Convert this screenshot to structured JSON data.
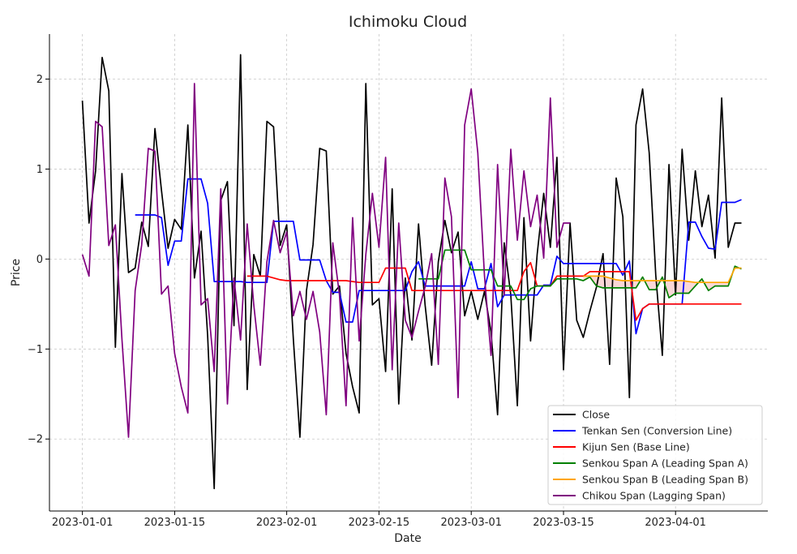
{
  "chart_data": {
    "type": "line",
    "title": "Ichimoku Cloud",
    "xlabel": "Date",
    "ylabel": "Price",
    "x_start": "2023-01-01",
    "x_tick_labels": [
      "2023-01-01",
      "2023-01-15",
      "2023-02-01",
      "2023-02-15",
      "2023-03-01",
      "2023-03-15",
      "2023-04-01"
    ],
    "x_tick_dates": [
      "2023-01-01",
      "2023-01-15",
      "2023-02-01",
      "2023-02-15",
      "2023-03-01",
      "2023-03-15",
      "2023-04-01"
    ],
    "xlim": [
      "2022-12-27",
      "2023-04-15"
    ],
    "y_tick_values": [
      -2,
      -1,
      0,
      1,
      2
    ],
    "y_tick_labels": [
      "−2",
      "−1",
      "0",
      "1",
      "2"
    ],
    "ylim": [
      -2.8,
      2.5
    ],
    "grid": true,
    "legend_position": "lower-right",
    "series": [
      {
        "name": "Close",
        "color": "#000000",
        "x": [
          "2023-01-01",
          "2023-01-02",
          "2023-01-03",
          "2023-01-04",
          "2023-01-05",
          "2023-01-06",
          "2023-01-07",
          "2023-01-08",
          "2023-01-09",
          "2023-01-10",
          "2023-01-11",
          "2023-01-12",
          "2023-01-13",
          "2023-01-14",
          "2023-01-15",
          "2023-01-16",
          "2023-01-17",
          "2023-01-18",
          "2023-01-19",
          "2023-01-20",
          "2023-01-21",
          "2023-01-22",
          "2023-01-23",
          "2023-01-24",
          "2023-01-25",
          "2023-01-26",
          "2023-01-27",
          "2023-01-28",
          "2023-01-29",
          "2023-01-30",
          "2023-01-31",
          "2023-02-01",
          "2023-02-02",
          "2023-02-03",
          "2023-02-04",
          "2023-02-05",
          "2023-02-06",
          "2023-02-07",
          "2023-02-08",
          "2023-02-09",
          "2023-02-10",
          "2023-02-11",
          "2023-02-12",
          "2023-02-13",
          "2023-02-14",
          "2023-02-15",
          "2023-02-16",
          "2023-02-17",
          "2023-02-18",
          "2023-02-19",
          "2023-02-20",
          "2023-02-21",
          "2023-02-22",
          "2023-02-23",
          "2023-02-24",
          "2023-02-25",
          "2023-02-26",
          "2023-02-27",
          "2023-02-28",
          "2023-03-01",
          "2023-03-02",
          "2023-03-03",
          "2023-03-04",
          "2023-03-05",
          "2023-03-06",
          "2023-03-07",
          "2023-03-08",
          "2023-03-09",
          "2023-03-10",
          "2023-03-11",
          "2023-03-12",
          "2023-03-13",
          "2023-03-14",
          "2023-03-15",
          "2023-03-16",
          "2023-03-17",
          "2023-03-18",
          "2023-03-19",
          "2023-03-20",
          "2023-03-21",
          "2023-03-22",
          "2023-03-23",
          "2023-03-24",
          "2023-03-25",
          "2023-03-26",
          "2023-03-27",
          "2023-03-28",
          "2023-03-29",
          "2023-03-30",
          "2023-03-31",
          "2023-04-01",
          "2023-04-02",
          "2023-04-03",
          "2023-04-04",
          "2023-04-05",
          "2023-04-06",
          "2023-04-07",
          "2023-04-08",
          "2023-04-09",
          "2023-04-10",
          "2023-04-11"
        ],
        "y": [
          1.76,
          0.4,
          0.98,
          2.24,
          1.87,
          -0.98,
          0.95,
          -0.15,
          -0.1,
          0.41,
          0.14,
          1.45,
          0.76,
          0.12,
          0.44,
          0.33,
          1.49,
          -0.21,
          0.31,
          -0.85,
          -2.55,
          0.65,
          0.86,
          -0.74,
          2.27,
          -1.45,
          0.05,
          -0.19,
          1.53,
          1.47,
          0.15,
          0.38,
          -0.89,
          -1.98,
          -0.35,
          0.16,
          1.23,
          1.2,
          -0.39,
          -0.3,
          -1.05,
          -1.42,
          -1.71,
          1.95,
          -0.51,
          -0.44,
          -1.25,
          0.78,
          -1.61,
          -0.21,
          -0.9,
          0.39,
          -0.51,
          -1.18,
          -0.03,
          0.43,
          0.07,
          0.3,
          -0.63,
          -0.36,
          -0.67,
          -0.36,
          -0.81,
          -1.73,
          0.18,
          -0.4,
          -1.63,
          0.46,
          -0.91,
          0.05,
          0.73,
          0.13,
          1.13,
          -1.23,
          0.4,
          -0.68,
          -0.87,
          -0.58,
          -0.31,
          0.06,
          -1.17,
          0.9,
          0.47,
          -1.54,
          1.49,
          1.89,
          1.18,
          -0.18,
          -1.07,
          1.05,
          -0.4,
          1.22,
          0.21,
          0.98,
          0.36,
          0.71,
          0.01,
          1.79,
          0.13,
          0.4,
          0.4
        ]
      },
      {
        "name": "Tenkan Sen (Conversion Line)",
        "color": "#0000ff",
        "x": [
          "2023-01-09",
          "2023-01-10",
          "2023-01-11",
          "2023-01-12",
          "2023-01-13",
          "2023-01-14",
          "2023-01-15",
          "2023-01-16",
          "2023-01-17",
          "2023-01-18",
          "2023-01-19",
          "2023-01-20",
          "2023-01-21",
          "2023-01-22",
          "2023-01-23",
          "2023-01-24",
          "2023-01-25",
          "2023-01-26",
          "2023-01-27",
          "2023-01-28",
          "2023-01-29",
          "2023-01-30",
          "2023-01-31",
          "2023-02-01",
          "2023-02-02",
          "2023-02-03",
          "2023-02-04",
          "2023-02-05",
          "2023-02-06",
          "2023-02-07",
          "2023-02-08",
          "2023-02-09",
          "2023-02-10",
          "2023-02-11",
          "2023-02-12",
          "2023-02-13",
          "2023-02-14",
          "2023-02-15",
          "2023-02-16",
          "2023-02-17",
          "2023-02-18",
          "2023-02-19",
          "2023-02-20",
          "2023-02-21",
          "2023-02-22",
          "2023-02-23",
          "2023-02-24",
          "2023-02-25",
          "2023-02-26",
          "2023-02-27",
          "2023-02-28",
          "2023-03-01",
          "2023-03-02",
          "2023-03-03",
          "2023-03-04",
          "2023-03-05",
          "2023-03-06",
          "2023-03-07",
          "2023-03-08",
          "2023-03-09",
          "2023-03-10",
          "2023-03-11",
          "2023-03-12",
          "2023-03-13",
          "2023-03-14",
          "2023-03-15",
          "2023-03-16",
          "2023-03-17",
          "2023-03-18",
          "2023-03-19",
          "2023-03-20",
          "2023-03-21",
          "2023-03-22",
          "2023-03-23",
          "2023-03-24",
          "2023-03-25",
          "2023-03-26",
          "2023-03-27",
          "2023-03-28",
          "2023-03-29",
          "2023-03-30",
          "2023-03-31",
          "2023-04-01",
          "2023-04-02",
          "2023-04-03",
          "2023-04-04",
          "2023-04-05",
          "2023-04-06",
          "2023-04-07",
          "2023-04-08",
          "2023-04-09",
          "2023-04-10",
          "2023-04-11"
        ],
        "y": [
          0.49,
          0.49,
          0.49,
          0.49,
          0.46,
          -0.07,
          0.2,
          0.2,
          0.89,
          0.89,
          0.89,
          0.62,
          -0.25,
          -0.25,
          -0.25,
          -0.25,
          -0.25,
          -0.26,
          -0.26,
          -0.26,
          -0.26,
          0.42,
          0.42,
          0.42,
          0.42,
          -0.01,
          -0.01,
          -0.01,
          -0.01,
          -0.24,
          -0.37,
          -0.37,
          -0.7,
          -0.7,
          -0.35,
          -0.35,
          -0.35,
          -0.35,
          -0.35,
          -0.35,
          -0.35,
          -0.35,
          -0.14,
          -0.03,
          -0.3,
          -0.3,
          -0.3,
          -0.3,
          -0.3,
          -0.3,
          -0.3,
          -0.03,
          -0.33,
          -0.33,
          -0.05,
          -0.53,
          -0.4,
          -0.4,
          -0.4,
          -0.4,
          -0.4,
          -0.4,
          -0.29,
          -0.29,
          0.03,
          -0.05,
          -0.05,
          -0.05,
          -0.05,
          -0.05,
          -0.05,
          -0.05,
          -0.05,
          -0.05,
          -0.18,
          -0.02,
          -0.83,
          -0.55,
          -0.5,
          -0.5,
          -0.5,
          -0.5,
          -0.5,
          -0.5,
          0.41,
          0.41,
          0.25,
          0.12,
          0.11,
          0.63,
          0.63,
          0.63,
          0.66
        ]
      },
      {
        "name": "Kijun Sen (Base Line)",
        "color": "#ff0000",
        "x": [
          "2023-01-26",
          "2023-01-27",
          "2023-01-28",
          "2023-01-29",
          "2023-01-30",
          "2023-01-31",
          "2023-02-01",
          "2023-02-02",
          "2023-02-03",
          "2023-02-04",
          "2023-02-05",
          "2023-02-06",
          "2023-02-07",
          "2023-02-08",
          "2023-02-09",
          "2023-02-10",
          "2023-02-11",
          "2023-02-12",
          "2023-02-13",
          "2023-02-14",
          "2023-02-15",
          "2023-02-16",
          "2023-02-17",
          "2023-02-18",
          "2023-02-19",
          "2023-02-20",
          "2023-02-21",
          "2023-02-22",
          "2023-02-23",
          "2023-02-24",
          "2023-02-25",
          "2023-02-26",
          "2023-02-27",
          "2023-02-28",
          "2023-03-01",
          "2023-03-02",
          "2023-03-03",
          "2023-03-04",
          "2023-03-05",
          "2023-03-06",
          "2023-03-07",
          "2023-03-08",
          "2023-03-09",
          "2023-03-10",
          "2023-03-11",
          "2023-03-12",
          "2023-03-13",
          "2023-03-14",
          "2023-03-15",
          "2023-03-16",
          "2023-03-17",
          "2023-03-18",
          "2023-03-19",
          "2023-03-20",
          "2023-03-21",
          "2023-03-22",
          "2023-03-23",
          "2023-03-24",
          "2023-03-25",
          "2023-03-26",
          "2023-03-27",
          "2023-03-28",
          "2023-03-29",
          "2023-03-30",
          "2023-03-31",
          "2023-04-01",
          "2023-04-02",
          "2023-04-03",
          "2023-04-04",
          "2023-04-05",
          "2023-04-06",
          "2023-04-07",
          "2023-04-08",
          "2023-04-09",
          "2023-04-10",
          "2023-04-11"
        ],
        "y": [
          -0.19,
          -0.19,
          -0.19,
          -0.19,
          -0.21,
          -0.23,
          -0.24,
          -0.24,
          -0.24,
          -0.24,
          -0.24,
          -0.24,
          -0.24,
          -0.24,
          -0.24,
          -0.24,
          -0.25,
          -0.26,
          -0.26,
          -0.26,
          -0.26,
          -0.1,
          -0.1,
          -0.1,
          -0.1,
          -0.35,
          -0.35,
          -0.35,
          -0.35,
          -0.35,
          -0.35,
          -0.35,
          -0.35,
          -0.35,
          -0.35,
          -0.35,
          -0.35,
          -0.35,
          -0.35,
          -0.35,
          -0.35,
          -0.35,
          -0.14,
          -0.04,
          -0.3,
          -0.3,
          -0.3,
          -0.19,
          -0.19,
          -0.19,
          -0.19,
          -0.19,
          -0.14,
          -0.14,
          -0.14,
          -0.14,
          -0.14,
          -0.14,
          -0.14,
          -0.68,
          -0.55,
          -0.5,
          -0.5,
          -0.5,
          -0.5,
          -0.5,
          -0.5,
          -0.5,
          -0.5,
          -0.5,
          -0.5,
          -0.5,
          -0.5,
          -0.5,
          -0.5,
          -0.5
        ]
      },
      {
        "name": "Senkou Span A (Leading Span A)",
        "color": "#008000",
        "x": [
          "2023-02-21",
          "2023-02-22",
          "2023-02-23",
          "2023-02-24",
          "2023-02-25",
          "2023-02-26",
          "2023-02-27",
          "2023-02-28",
          "2023-03-01",
          "2023-03-02",
          "2023-03-03",
          "2023-03-04",
          "2023-03-05",
          "2023-03-06",
          "2023-03-07",
          "2023-03-08",
          "2023-03-09",
          "2023-03-10",
          "2023-03-11",
          "2023-03-12",
          "2023-03-13",
          "2023-03-14",
          "2023-03-15",
          "2023-03-16",
          "2023-03-17",
          "2023-03-18",
          "2023-03-19",
          "2023-03-20",
          "2023-03-21",
          "2023-03-22",
          "2023-03-23",
          "2023-03-24",
          "2023-03-25",
          "2023-03-26",
          "2023-03-27",
          "2023-03-28",
          "2023-03-29",
          "2023-03-30",
          "2023-03-31",
          "2023-04-01",
          "2023-04-02",
          "2023-04-03",
          "2023-04-04",
          "2023-04-05",
          "2023-04-06",
          "2023-04-07",
          "2023-04-08",
          "2023-04-09",
          "2023-04-10",
          "2023-04-11"
        ],
        "y": [
          -0.22,
          -0.22,
          -0.22,
          -0.22,
          0.1,
          0.1,
          0.1,
          0.1,
          -0.12,
          -0.12,
          -0.12,
          -0.12,
          -0.3,
          -0.3,
          -0.3,
          -0.45,
          -0.45,
          -0.33,
          -0.3,
          -0.3,
          -0.3,
          -0.22,
          -0.22,
          -0.22,
          -0.22,
          -0.24,
          -0.2,
          -0.3,
          -0.32,
          -0.32,
          -0.32,
          -0.32,
          -0.32,
          -0.32,
          -0.2,
          -0.34,
          -0.34,
          -0.2,
          -0.43,
          -0.38,
          -0.38,
          -0.38,
          -0.3,
          -0.22,
          -0.35,
          -0.3,
          -0.3,
          -0.3,
          -0.08,
          -0.11
        ]
      },
      {
        "name": "Senkou Span B (Leading Span B)",
        "color": "#ffa500",
        "x": [
          "2023-03-18",
          "2023-03-19",
          "2023-03-20",
          "2023-03-21",
          "2023-03-22",
          "2023-03-23",
          "2023-03-24",
          "2023-03-25",
          "2023-03-26",
          "2023-03-27",
          "2023-03-28",
          "2023-03-29",
          "2023-03-30",
          "2023-03-31",
          "2023-04-01",
          "2023-04-02",
          "2023-04-03",
          "2023-04-04",
          "2023-04-05",
          "2023-04-06",
          "2023-04-07",
          "2023-04-08",
          "2023-04-09",
          "2023-04-10",
          "2023-04-11"
        ],
        "y": [
          -0.19,
          -0.19,
          -0.19,
          -0.19,
          -0.21,
          -0.23,
          -0.24,
          -0.24,
          -0.24,
          -0.24,
          -0.24,
          -0.24,
          -0.24,
          -0.24,
          -0.24,
          -0.24,
          -0.25,
          -0.26,
          -0.26,
          -0.26,
          -0.26,
          -0.26,
          -0.26,
          -0.1,
          -0.1
        ]
      },
      {
        "name": "Chikou Span (Lagging Span)",
        "color": "#800080",
        "x": [
          "2023-01-01",
          "2023-01-02",
          "2023-01-03",
          "2023-01-04",
          "2023-01-05",
          "2023-01-06",
          "2023-01-07",
          "2023-01-08",
          "2023-01-09",
          "2023-01-10",
          "2023-01-11",
          "2023-01-12",
          "2023-01-13",
          "2023-01-14",
          "2023-01-15",
          "2023-01-16",
          "2023-01-17",
          "2023-01-18",
          "2023-01-19",
          "2023-01-20",
          "2023-01-21",
          "2023-01-22",
          "2023-01-23",
          "2023-01-24",
          "2023-01-25",
          "2023-01-26",
          "2023-01-27",
          "2023-01-28",
          "2023-01-29",
          "2023-01-30",
          "2023-01-31",
          "2023-02-01",
          "2023-02-02",
          "2023-02-03",
          "2023-02-04",
          "2023-02-05",
          "2023-02-06",
          "2023-02-07",
          "2023-02-08",
          "2023-02-09",
          "2023-02-10",
          "2023-02-11",
          "2023-02-12",
          "2023-02-13",
          "2023-02-14",
          "2023-02-15",
          "2023-02-16",
          "2023-02-17",
          "2023-02-18",
          "2023-02-19",
          "2023-02-20",
          "2023-02-21",
          "2023-02-22",
          "2023-02-23",
          "2023-02-24",
          "2023-02-25",
          "2023-02-26",
          "2023-02-27",
          "2023-02-28",
          "2023-03-01",
          "2023-03-02",
          "2023-03-03",
          "2023-03-04",
          "2023-03-05",
          "2023-03-06",
          "2023-03-07",
          "2023-03-08",
          "2023-03-09",
          "2023-03-10",
          "2023-03-11",
          "2023-03-12",
          "2023-03-13",
          "2023-03-14",
          "2023-03-15",
          "2023-03-16"
        ],
        "y": [
          0.05,
          -0.19,
          1.53,
          1.47,
          0.15,
          0.38,
          -0.89,
          -1.98,
          -0.35,
          0.16,
          1.23,
          1.2,
          -0.39,
          -0.3,
          -1.05,
          -1.42,
          -1.71,
          1.95,
          -0.51,
          -0.44,
          -1.25,
          0.78,
          -1.61,
          -0.21,
          -0.9,
          0.39,
          -0.51,
          -1.18,
          -0.03,
          0.43,
          0.07,
          0.3,
          -0.63,
          -0.36,
          -0.67,
          -0.36,
          -0.81,
          -1.73,
          0.18,
          -0.4,
          -1.63,
          0.46,
          -0.91,
          0.05,
          0.73,
          0.13,
          1.13,
          -1.23,
          0.4,
          -0.68,
          -0.87,
          -0.58,
          -0.31,
          0.06,
          -1.17,
          0.9,
          0.47,
          -1.54,
          1.49,
          1.89,
          1.18,
          -0.18,
          -1.07,
          1.05,
          -0.4,
          1.22,
          0.21,
          0.98,
          0.36,
          0.71,
          0.01,
          1.79,
          0.13,
          0.4,
          0.4
        ]
      }
    ],
    "cloud_fill_color": "#f4a6a6"
  }
}
